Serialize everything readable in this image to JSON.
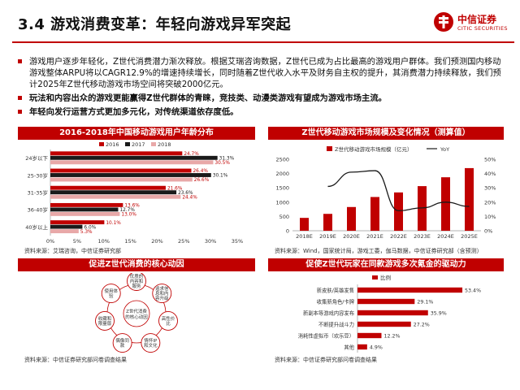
{
  "header": {
    "title": "3.4 游戏消费变革：年轻向游戏异军突起",
    "logo_cn": "中信证券",
    "logo_en": "CITIC SECURITIES"
  },
  "bullets": [
    "游戏用户逐步年轻化，Z世代消费潜力渐次释放。根据艾瑞咨询数据，Z世代已成为占比最高的游戏用户群体。我们预测国内移动游戏整体ARPU将以CAGR12.9%的增速持续增长，同时随着Z世代收入水平及财务自主权的提升，其消费潜力持续释放，我们预计2025年Z世代移动游戏市场空间将突破2000亿元。",
    "玩法和内容出众的游戏更能赢得Z世代群体的青睐，竞技类、动漫类游戏有望成为游戏市场主流。",
    "年轻向发行运营方式更加多元化，对传统渠道依存度低。"
  ],
  "panels": {
    "age": {
      "title": "2016-2018年中国移动游戏用户年龄分布",
      "source": "资料来源：艾瑞咨询，中信证券研究部"
    },
    "market": {
      "title": "Z世代移动游戏市场规模及变化情况（测算值）",
      "source": "资料来源：Wind，国家统计局，游戏工委，伽马数据，中信证券研究部（含预测）"
    },
    "motive": {
      "title": "促进Z世代消费的核心动因",
      "source": "资料来源：中信证券研究部问卷调查结果",
      "center": [
        "Z世代消费",
        "的核心动因"
      ],
      "nodes": [
        [
          "优质的",
          "内容和",
          "服务"
        ],
        [
          "追求信",
          "息和内",
          "容升级"
        ],
        [
          "高性价",
          "比"
        ],
        [
          "情怀IP",
          "和文化"
        ],
        [
          "偶像同",
          "款"
        ],
        [
          "收藏和",
          "限量版"
        ],
        [
          "使用体",
          "验"
        ]
      ]
    },
    "driver": {
      "title": "促使Z世代玩家在同款游戏多次氪金的驱动力",
      "source": "资料来源：中信证券研究部问卷调查结果"
    }
  },
  "chart_data": [
    {
      "type": "bar",
      "orientation": "horizontal",
      "categories": [
        "24岁以下",
        "25-30岁",
        "31-35岁",
        "36-40岁",
        "40岁以上"
      ],
      "series": [
        {
          "name": "2016",
          "color": "#c00000",
          "values": [
            24.7,
            26.4,
            21.6,
            13.6,
            10.1
          ]
        },
        {
          "name": "2017",
          "color": "#1a1a1a",
          "values": [
            31.3,
            30.1,
            23.6,
            12.7,
            6.0
          ]
        },
        {
          "name": "2018",
          "color": "#e8a8a8",
          "values": [
            30.5,
            26.6,
            24.4,
            13.0,
            5.3
          ]
        }
      ],
      "xlim": [
        0,
        35
      ],
      "xticks": [
        "0%",
        "5%",
        "10%",
        "15%",
        "20%",
        "25%",
        "30%",
        "35%"
      ],
      "legend": "top"
    },
    {
      "type": "bar+line",
      "categories": [
        "2018E",
        "2019E",
        "2020E",
        "2021E",
        "2022E",
        "2023E",
        "2024E",
        "2025E"
      ],
      "bar_series": {
        "name": "Z世代移动游戏市场规模（亿元）",
        "color": "#c00000",
        "values": [
          450,
          590,
          830,
          1180,
          1340,
          1560,
          1870,
          2190
        ]
      },
      "line_series": {
        "name": "YoY",
        "color": "#1a1a1a",
        "values": [
          null,
          31,
          41,
          42,
          14,
          16,
          20,
          17
        ]
      },
      "ylim_left": [
        0,
        2500
      ],
      "yticks_left": [
        "0",
        "500",
        "1000",
        "1500",
        "2000",
        "2500"
      ],
      "ylim_right": [
        0,
        50
      ],
      "yticks_right": [
        "0%",
        "10%",
        "20%",
        "30%",
        "40%",
        "50%"
      ],
      "legend": "top"
    },
    {
      "type": "bar",
      "orientation": "horizontal",
      "categories": [
        "新皮肤/英雄发售",
        "收集新角色/卡牌",
        "新副本等游戏内容发布",
        "不断提升战斗力",
        "消耗性虚拟币（欢乐豆）",
        "其他"
      ],
      "series": [
        {
          "name": "比例",
          "color": "#c00000",
          "values": [
            53.4,
            29.1,
            35.9,
            27.2,
            12.2,
            4.9
          ]
        }
      ],
      "xlim": [
        0,
        60
      ],
      "legend": "top-left"
    }
  ]
}
